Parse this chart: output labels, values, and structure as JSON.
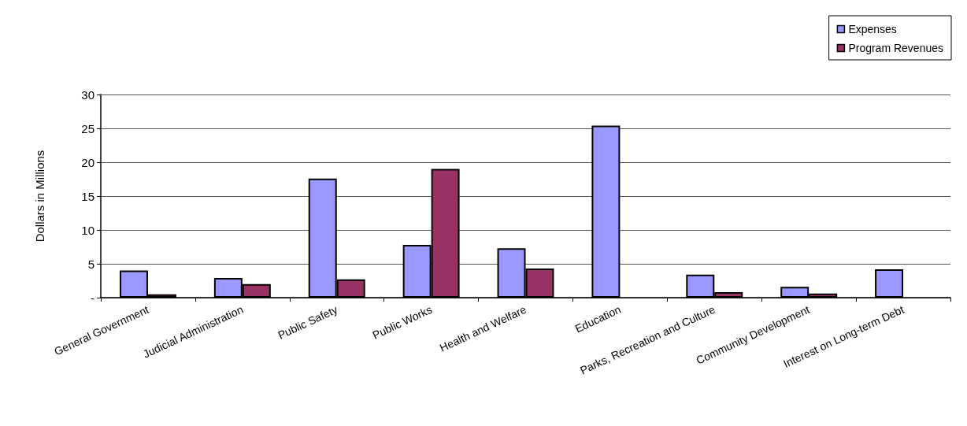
{
  "chart_data": {
    "type": "bar",
    "ylabel": "Dollars in Millions",
    "categories": [
      "General Government",
      "Judicial Administration",
      "Public Safety",
      "Public Works",
      "Health and Welfare",
      "Education",
      "Parks, Recreation and Culture",
      "Community Development",
      "Interest on Long-term Debt"
    ],
    "series": [
      {
        "name": "Expenses",
        "color": "#9999ff",
        "values": [
          4.0,
          2.9,
          17.6,
          7.8,
          7.3,
          25.4,
          3.4,
          1.6,
          4.2
        ]
      },
      {
        "name": "Program Revenues",
        "color": "#993366",
        "values": [
          0.5,
          2.0,
          2.7,
          19.0,
          4.3,
          null,
          0.8,
          0.6,
          null
        ]
      }
    ],
    "ylim": [
      0,
      30
    ],
    "yticks": [
      {
        "value": 0,
        "label": "-"
      },
      5,
      10,
      15,
      20,
      25,
      30
    ],
    "grid": "y",
    "legend": "top right"
  }
}
